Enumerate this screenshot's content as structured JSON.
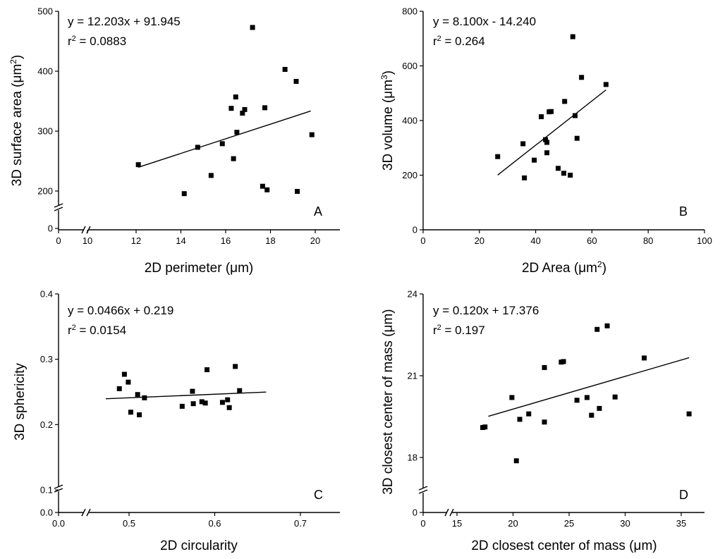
{
  "chart_data": [
    {
      "type": "scatter",
      "panel": "A",
      "xlabel": "2D perimeter (μm)",
      "ylabel": "3D surface area (μm²)",
      "xticks": [
        "0",
        "10",
        "12",
        "14",
        "16",
        "18",
        "20"
      ],
      "yticks": [
        "0",
        "200",
        "300",
        "400",
        "500"
      ],
      "annotation_eq": "y = 12.203x + 91.945",
      "annotation_r2_prefix": "r",
      "annotation_r2_value": " = 0.0883",
      "fit": {
        "slope": 12.203,
        "intercept": 91.945,
        "x_range": [
          12.1,
          19.8
        ]
      },
      "points": [
        {
          "x": 12.1,
          "y": 244
        },
        {
          "x": 14.15,
          "y": 186
        },
        {
          "x": 14.75,
          "y": 273
        },
        {
          "x": 15.35,
          "y": 226
        },
        {
          "x": 15.85,
          "y": 279
        },
        {
          "x": 16.25,
          "y": 338
        },
        {
          "x": 16.35,
          "y": 254
        },
        {
          "x": 16.45,
          "y": 357
        },
        {
          "x": 16.5,
          "y": 298
        },
        {
          "x": 16.75,
          "y": 330
        },
        {
          "x": 16.85,
          "y": 336
        },
        {
          "x": 17.2,
          "y": 473
        },
        {
          "x": 17.65,
          "y": 208
        },
        {
          "x": 17.75,
          "y": 339
        },
        {
          "x": 17.85,
          "y": 202
        },
        {
          "x": 18.65,
          "y": 403
        },
        {
          "x": 19.15,
          "y": 383
        },
        {
          "x": 19.2,
          "y": 198
        },
        {
          "x": 19.85,
          "y": 294
        }
      ]
    },
    {
      "type": "scatter",
      "panel": "B",
      "xlabel": "2D Area (μm²)",
      "ylabel": "3D volume (μm³)",
      "xticks": [
        "0",
        "20",
        "40",
        "60",
        "80",
        "100"
      ],
      "yticks": [
        "0",
        "200",
        "400",
        "600",
        "800"
      ],
      "annotation_eq": "y = 8.100x - 14.240",
      "annotation_r2_prefix": "r",
      "annotation_r2_value": " = 0.264",
      "fit": {
        "slope": 8.1,
        "intercept": -14.24,
        "x_range": [
          26.5,
          65
        ]
      },
      "points": [
        {
          "x": 26.5,
          "y": 268
        },
        {
          "x": 35.5,
          "y": 315
        },
        {
          "x": 36,
          "y": 190
        },
        {
          "x": 39.5,
          "y": 255
        },
        {
          "x": 42,
          "y": 414
        },
        {
          "x": 43.5,
          "y": 330
        },
        {
          "x": 44,
          "y": 320
        },
        {
          "x": 44,
          "y": 282
        },
        {
          "x": 44.8,
          "y": 432
        },
        {
          "x": 45.5,
          "y": 433
        },
        {
          "x": 48,
          "y": 225
        },
        {
          "x": 50,
          "y": 207
        },
        {
          "x": 50.3,
          "y": 470
        },
        {
          "x": 52.3,
          "y": 200
        },
        {
          "x": 53.2,
          "y": 707
        },
        {
          "x": 54,
          "y": 418
        },
        {
          "x": 54.7,
          "y": 335
        },
        {
          "x": 56.3,
          "y": 558
        },
        {
          "x": 65,
          "y": 532
        }
      ]
    },
    {
      "type": "scatter",
      "panel": "C",
      "xlabel": "2D circularity",
      "ylabel": "3D sphericity",
      "xticks": [
        "0.0",
        "0.5",
        "0.6",
        "0.7"
      ],
      "yticks": [
        "0.0",
        "0.1",
        "0.2",
        "0.3",
        "0.4"
      ],
      "annotation_eq": "y = 0.0466x + 0.219",
      "annotation_r2_prefix": "r",
      "annotation_r2_value": " = 0.0154",
      "fit": {
        "slope": 0.0466,
        "intercept": 0.219,
        "x_range": [
          0.44,
          0.66
        ]
      },
      "points": [
        {
          "x": 0.475,
          "y": 0.255
        },
        {
          "x": 0.488,
          "y": 0.277
        },
        {
          "x": 0.498,
          "y": 0.265
        },
        {
          "x": 0.502,
          "y": 0.219
        },
        {
          "x": 0.51,
          "y": 0.246
        },
        {
          "x": 0.512,
          "y": 0.215
        },
        {
          "x": 0.518,
          "y": 0.241
        },
        {
          "x": 0.562,
          "y": 0.228
        },
        {
          "x": 0.574,
          "y": 0.251
        },
        {
          "x": 0.575,
          "y": 0.232
        },
        {
          "x": 0.585,
          "y": 0.235
        },
        {
          "x": 0.589,
          "y": 0.233
        },
        {
          "x": 0.591,
          "y": 0.284
        },
        {
          "x": 0.609,
          "y": 0.234
        },
        {
          "x": 0.615,
          "y": 0.238
        },
        {
          "x": 0.617,
          "y": 0.226
        },
        {
          "x": 0.624,
          "y": 0.289
        },
        {
          "x": 0.629,
          "y": 0.252
        }
      ]
    },
    {
      "type": "scatter",
      "panel": "D",
      "xlabel": "2D closest center of mass (μm)",
      "ylabel": "3D closest center of mass (μm)",
      "xticks": [
        "0",
        "15",
        "20",
        "25",
        "30",
        "35"
      ],
      "yticks": [
        "0",
        "18",
        "21",
        "24"
      ],
      "annotation_eq": "y = 0.120x + 17.376",
      "annotation_r2_prefix": "r",
      "annotation_r2_value": " = 0.197",
      "fit": {
        "slope": 0.12,
        "intercept": 17.376,
        "x_range": [
          17.8,
          35.7
        ]
      },
      "points": [
        {
          "x": 17.3,
          "y": 19.1
        },
        {
          "x": 17.5,
          "y": 19.12
        },
        {
          "x": 19.9,
          "y": 20.2
        },
        {
          "x": 20.3,
          "y": 17.9
        },
        {
          "x": 20.6,
          "y": 19.4
        },
        {
          "x": 21.4,
          "y": 19.6
        },
        {
          "x": 22.8,
          "y": 21.3
        },
        {
          "x": 22.8,
          "y": 19.3
        },
        {
          "x": 24.3,
          "y": 21.5
        },
        {
          "x": 24.5,
          "y": 21.52
        },
        {
          "x": 25.7,
          "y": 20.1
        },
        {
          "x": 26.6,
          "y": 20.2
        },
        {
          "x": 27.0,
          "y": 19.55
        },
        {
          "x": 27.5,
          "y": 22.7
        },
        {
          "x": 27.7,
          "y": 19.8
        },
        {
          "x": 28.4,
          "y": 22.83
        },
        {
          "x": 29.1,
          "y": 20.22
        },
        {
          "x": 31.7,
          "y": 21.65
        },
        {
          "x": 35.7,
          "y": 19.6
        }
      ]
    }
  ]
}
